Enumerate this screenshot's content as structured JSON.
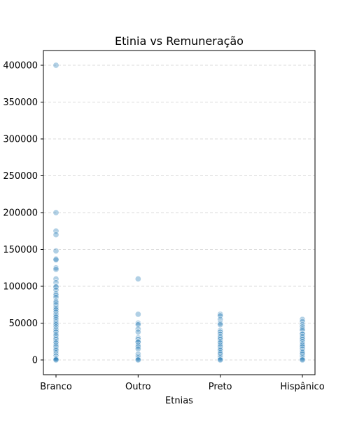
{
  "chart_data": {
    "type": "scatter",
    "title": "Etinia vs Remuneração",
    "xlabel": "Etnias",
    "ylabel": "",
    "categories": [
      "Branco",
      "Outro",
      "Preto",
      "Hispânico"
    ],
    "ylim": [
      -20000,
      420000
    ],
    "yticks": [
      0,
      50000,
      100000,
      150000,
      200000,
      250000,
      300000,
      350000,
      400000
    ],
    "ytick_labels": [
      "0",
      "50000",
      "100000",
      "150000",
      "200000",
      "250000",
      "300000",
      "350000",
      "400000"
    ],
    "grid": "y-only, dashed",
    "color": "#1f77b4",
    "point_alpha": 0.35,
    "points": [
      {
        "category": "Branco",
        "values": [
          400000,
          200000,
          175000,
          170000,
          148000,
          137000,
          136000,
          125000,
          123000,
          110000,
          105000,
          100000,
          99000,
          95000,
          90000,
          88000,
          85000,
          80000,
          78000,
          75000,
          72000,
          70000,
          68000,
          65000,
          62000,
          60000,
          58000,
          55000,
          52000,
          50000,
          48000,
          45000,
          42000,
          40000,
          38000,
          35000,
          33000,
          30000,
          28000,
          25000,
          23000,
          20000,
          18000,
          15000,
          13000,
          10000,
          8000,
          6000,
          5000,
          3000,
          2000,
          1000,
          0
        ]
      },
      {
        "category": "Outro",
        "values": [
          110000,
          62000,
          50000,
          48000,
          42000,
          38000,
          30000,
          28000,
          25000,
          24000,
          20000,
          18000,
          15000,
          8000,
          5000,
          3000,
          1000,
          0
        ]
      },
      {
        "category": "Preto",
        "values": [
          62000,
          60000,
          55000,
          50000,
          48000,
          40000,
          38000,
          35000,
          32000,
          30000,
          28000,
          25000,
          23000,
          20000,
          18000,
          15000,
          13000,
          10000,
          8000,
          5000,
          3000,
          1000,
          0
        ]
      },
      {
        "category": "Hispânico",
        "values": [
          55000,
          52000,
          48000,
          45000,
          42000,
          40000,
          36000,
          35000,
          32000,
          30000,
          28000,
          25000,
          22000,
          20000,
          18000,
          15000,
          12000,
          10000,
          8000,
          5000,
          3000,
          1000,
          0
        ]
      }
    ]
  }
}
